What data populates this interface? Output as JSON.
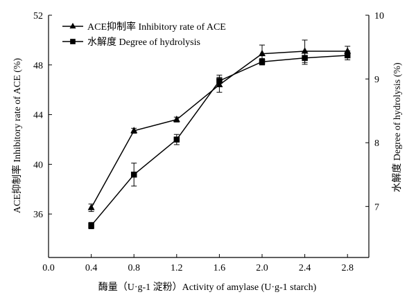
{
  "chart_data": {
    "type": "line",
    "x": [
      0.4,
      0.8,
      1.2,
      1.6,
      2.0,
      2.4,
      2.8
    ],
    "x_ticks": [
      "0.0",
      "0.4",
      "0.8",
      "1.2",
      "1.6",
      "2.0",
      "2.4",
      "2.8"
    ],
    "xlabel": "酶量（U·g-1 淀粉）Activity of amylase (U·g-1 starch)",
    "xlim": [
      0.0,
      3.0
    ],
    "y_left": {
      "label": "ACE抑制率 Inhibitory rate of ACE (%)",
      "lim": [
        32.5,
        52
      ],
      "ticks": [
        "36",
        "40",
        "44",
        "48",
        "52"
      ]
    },
    "y_right": {
      "label": "水解度 Degree of hydrolysis (%)",
      "lim": [
        6.2,
        10
      ],
      "ticks": [
        "7",
        "8",
        "9",
        "10"
      ]
    },
    "series": [
      {
        "name": "ACE抑制率 Inhibitory rate of ACE",
        "axis": "left",
        "marker": "triangle",
        "values": [
          36.5,
          42.7,
          43.6,
          46.4,
          48.9,
          49.1,
          49.1
        ],
        "errors": [
          0.3,
          0.2,
          0.2,
          0.6,
          0.7,
          0.9,
          0.4
        ]
      },
      {
        "name": "水解度 Degree of hydrolysis",
        "axis": "right",
        "marker": "square",
        "values": [
          6.7,
          7.5,
          8.05,
          8.97,
          9.27,
          9.33,
          9.37
        ],
        "errors": [
          0.05,
          0.18,
          0.08,
          0.09,
          0.05,
          0.1,
          0.07
        ]
      }
    ],
    "legend_position": "top-left",
    "grid": false
  }
}
